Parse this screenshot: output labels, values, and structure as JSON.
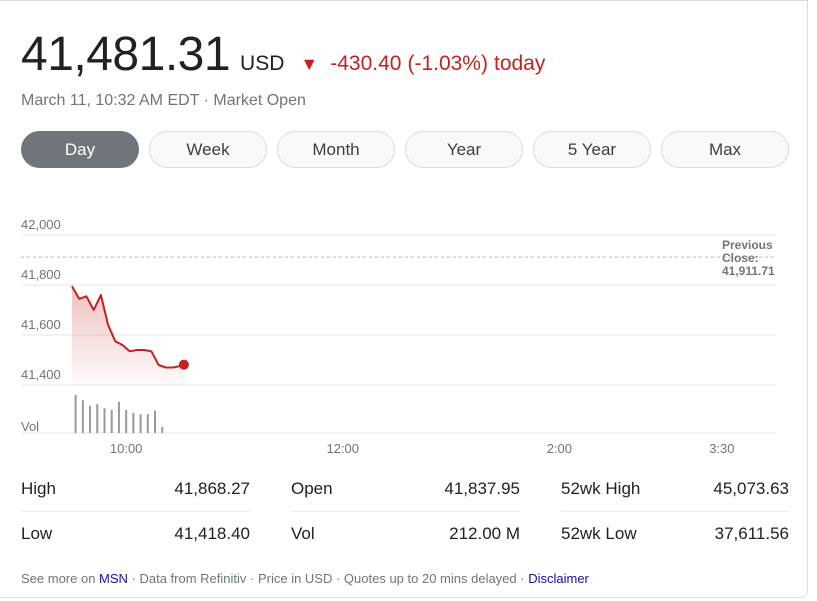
{
  "quote": {
    "price": "41,481.31",
    "currency": "USD",
    "arrow": "▼",
    "change": "-430.40",
    "change_pct": "(-1.03%)",
    "change_suffix": "today",
    "timestamp": "March 11, 10:32 AM EDT",
    "separator": " · ",
    "market_status": "Market Open",
    "down_color": "#c5221f"
  },
  "tabs": [
    {
      "label": "Day",
      "active": true
    },
    {
      "label": "Week",
      "active": false
    },
    {
      "label": "Month",
      "active": false
    },
    {
      "label": "Year",
      "active": false
    },
    {
      "label": "5 Year",
      "active": false
    },
    {
      "label": "Max",
      "active": false
    }
  ],
  "chart_data": {
    "type": "line",
    "x_label_ticks": [
      "10:00",
      "12:00",
      "2:00",
      "3:30"
    ],
    "x_label_tick_minutes": [
      30,
      150,
      270,
      360
    ],
    "session_minutes": [
      0,
      390
    ],
    "y_ticks": [
      42000,
      41800,
      41600,
      41400
    ],
    "y_tick_labels": [
      "42,000",
      "41,800",
      "41,600",
      "41,400"
    ],
    "ylim": [
      41400,
      42000
    ],
    "previous_close": 41911.71,
    "previous_close_label": [
      "Previous",
      "Close:",
      "41,911.71"
    ],
    "series": [
      {
        "x": [
          0,
          4,
          8,
          12,
          16,
          20,
          24,
          28,
          32,
          36,
          40,
          44,
          48,
          52,
          56,
          60,
          62
        ],
        "values": [
          41795,
          41745,
          41755,
          41700,
          41760,
          41640,
          41575,
          41560,
          41535,
          41540,
          41540,
          41535,
          41480,
          41470,
          41470,
          41476,
          41481.31
        ]
      }
    ],
    "volume_label": "Vol",
    "volume": [
      {
        "x": 2,
        "v": 0.95
      },
      {
        "x": 6,
        "v": 0.82
      },
      {
        "x": 10,
        "v": 0.68
      },
      {
        "x": 14,
        "v": 0.72
      },
      {
        "x": 18,
        "v": 0.62
      },
      {
        "x": 22,
        "v": 0.58
      },
      {
        "x": 26,
        "v": 0.78
      },
      {
        "x": 30,
        "v": 0.58
      },
      {
        "x": 34,
        "v": 0.5
      },
      {
        "x": 38,
        "v": 0.47
      },
      {
        "x": 42,
        "v": 0.47
      },
      {
        "x": 46,
        "v": 0.56
      },
      {
        "x": 50,
        "v": 0.15
      }
    ],
    "line_color": "#c5221f",
    "volume_color": "#999999"
  },
  "stats": [
    [
      {
        "key": "High",
        "value": "41,868.27"
      },
      {
        "key": "Open",
        "value": "41,837.95"
      },
      {
        "key": "52wk High",
        "value": "45,073.63"
      }
    ],
    [
      {
        "key": "Low",
        "value": "41,418.40"
      },
      {
        "key": "Vol",
        "value": "212.00 M"
      },
      {
        "key": "52wk Low",
        "value": "37,611.56"
      }
    ]
  ],
  "footer": {
    "see_more": "See more on ",
    "msn": "MSN",
    "rest": " · Data from Refinitiv · Price in USD · Quotes up to 20 mins delayed · ",
    "disclaimer": "Disclaimer"
  }
}
